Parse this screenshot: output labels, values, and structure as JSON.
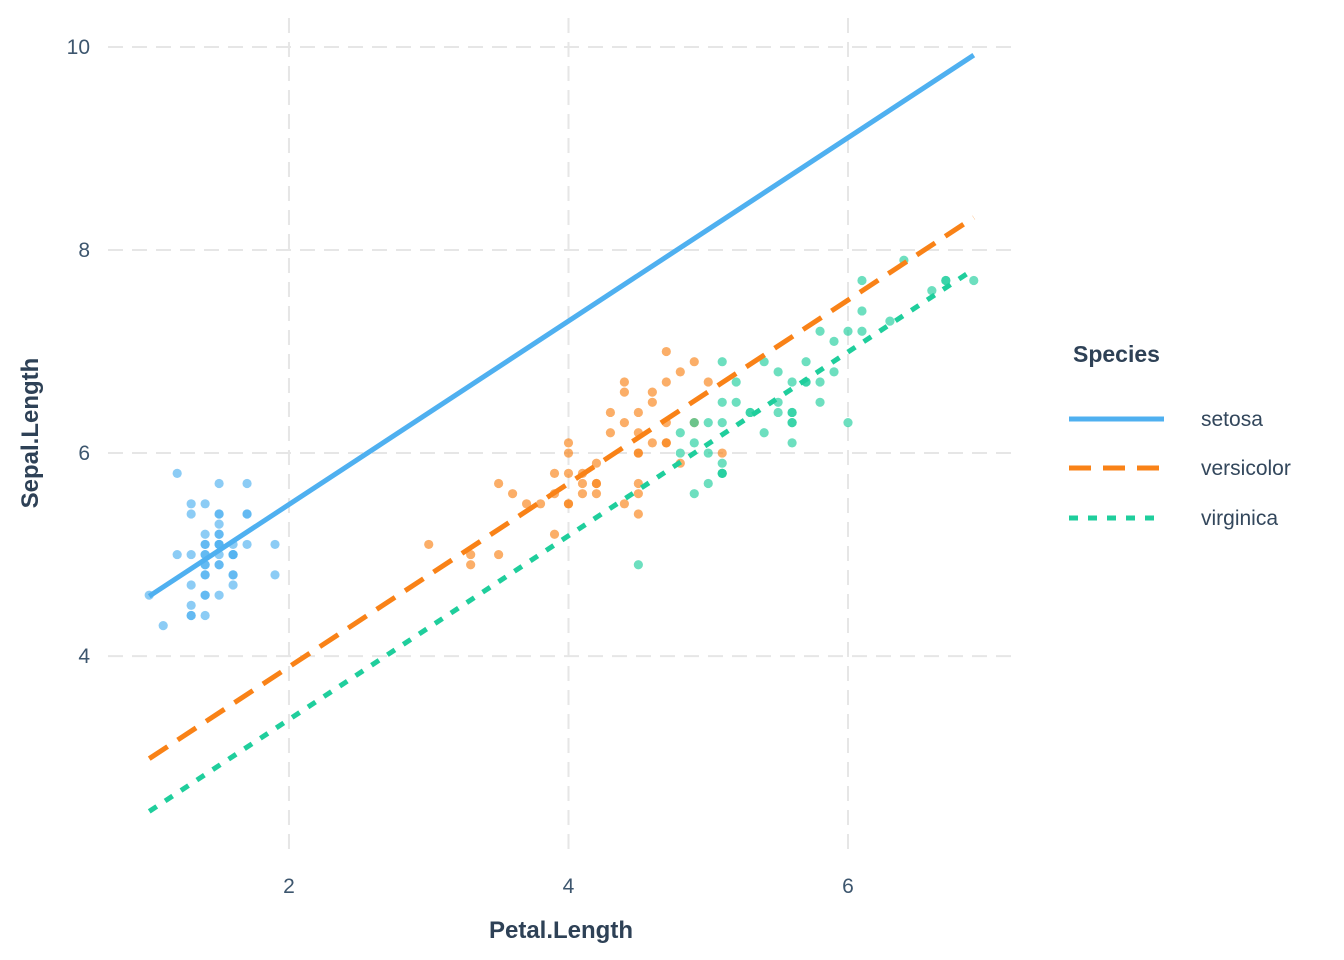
{
  "chart_data": {
    "type": "scatter",
    "title": "",
    "xlabel": "Petal.Length",
    "ylabel": "Sepal.Length",
    "x_ticks": [
      2,
      4,
      6
    ],
    "y_ticks": [
      4,
      6,
      8,
      10
    ],
    "x_range_shown": [
      0.7,
      7.2
    ],
    "y_range_shown": [
      2.06,
      10.29
    ],
    "grid": "major-dashed",
    "gridline_color": "#e6e6e6",
    "point_opacity": 0.65,
    "legend": {
      "title": "Species",
      "position": "right"
    },
    "series": [
      {
        "name": "setosa",
        "color": "#4fb0f0",
        "linestyle": "solid",
        "regression_line": {
          "x1": 1.0,
          "y1": 4.59,
          "x2": 6.9,
          "y2": 9.92
        },
        "points": [
          [
            1.4,
            5.1
          ],
          [
            1.4,
            4.9
          ],
          [
            1.3,
            4.7
          ],
          [
            1.5,
            4.6
          ],
          [
            1.4,
            5.0
          ],
          [
            1.7,
            5.4
          ],
          [
            1.4,
            4.6
          ],
          [
            1.5,
            5.0
          ],
          [
            1.4,
            4.4
          ],
          [
            1.5,
            4.9
          ],
          [
            1.5,
            5.4
          ],
          [
            1.6,
            4.8
          ],
          [
            1.4,
            4.8
          ],
          [
            1.1,
            4.3
          ],
          [
            1.2,
            5.8
          ],
          [
            1.5,
            5.7
          ],
          [
            1.3,
            5.4
          ],
          [
            1.4,
            5.1
          ],
          [
            1.7,
            5.7
          ],
          [
            1.5,
            5.1
          ],
          [
            1.7,
            5.4
          ],
          [
            1.5,
            5.1
          ],
          [
            1.0,
            4.6
          ],
          [
            1.7,
            5.1
          ],
          [
            1.9,
            4.8
          ],
          [
            1.6,
            5.0
          ],
          [
            1.6,
            5.0
          ],
          [
            1.5,
            5.2
          ],
          [
            1.4,
            5.2
          ],
          [
            1.6,
            4.7
          ],
          [
            1.6,
            4.8
          ],
          [
            1.5,
            5.4
          ],
          [
            1.5,
            5.2
          ],
          [
            1.4,
            5.5
          ],
          [
            1.5,
            4.9
          ],
          [
            1.2,
            5.0
          ],
          [
            1.3,
            5.5
          ],
          [
            1.4,
            4.9
          ],
          [
            1.3,
            4.4
          ],
          [
            1.5,
            5.1
          ],
          [
            1.3,
            5.0
          ],
          [
            1.3,
            4.5
          ],
          [
            1.3,
            4.4
          ],
          [
            1.6,
            5.0
          ],
          [
            1.9,
            5.1
          ],
          [
            1.4,
            4.8
          ],
          [
            1.6,
            5.1
          ],
          [
            1.4,
            4.6
          ],
          [
            1.5,
            5.3
          ],
          [
            1.4,
            5.0
          ]
        ]
      },
      {
        "name": "versicolor",
        "color": "#f98217",
        "linestyle": "dashed",
        "regression_line": {
          "x1": 1.0,
          "y1": 2.99,
          "x2": 6.9,
          "y2": 8.32
        },
        "points": [
          [
            4.7,
            7.0
          ],
          [
            4.5,
            6.4
          ],
          [
            4.9,
            6.9
          ],
          [
            4.0,
            5.5
          ],
          [
            4.6,
            6.5
          ],
          [
            4.5,
            5.7
          ],
          [
            4.7,
            6.3
          ],
          [
            3.3,
            4.9
          ],
          [
            4.6,
            6.6
          ],
          [
            3.9,
            5.2
          ],
          [
            3.5,
            5.0
          ],
          [
            4.2,
            5.9
          ],
          [
            4.0,
            6.0
          ],
          [
            4.7,
            6.1
          ],
          [
            3.6,
            5.6
          ],
          [
            4.4,
            6.7
          ],
          [
            4.5,
            5.6
          ],
          [
            4.1,
            5.8
          ],
          [
            4.5,
            6.2
          ],
          [
            3.9,
            5.6
          ],
          [
            4.8,
            5.9
          ],
          [
            4.0,
            6.1
          ],
          [
            4.9,
            6.3
          ],
          [
            4.7,
            6.1
          ],
          [
            4.3,
            6.4
          ],
          [
            4.4,
            6.6
          ],
          [
            4.8,
            6.8
          ],
          [
            5.0,
            6.7
          ],
          [
            4.5,
            6.0
          ],
          [
            3.5,
            5.7
          ],
          [
            3.8,
            5.5
          ],
          [
            3.7,
            5.5
          ],
          [
            3.9,
            5.8
          ],
          [
            5.1,
            6.0
          ],
          [
            4.5,
            5.4
          ],
          [
            4.5,
            6.0
          ],
          [
            4.7,
            6.7
          ],
          [
            4.4,
            6.3
          ],
          [
            4.1,
            5.6
          ],
          [
            4.0,
            5.5
          ],
          [
            4.4,
            5.5
          ],
          [
            4.6,
            6.1
          ],
          [
            4.0,
            5.8
          ],
          [
            3.3,
            5.0
          ],
          [
            4.2,
            5.6
          ],
          [
            4.2,
            5.7
          ],
          [
            4.2,
            5.7
          ],
          [
            4.3,
            6.2
          ],
          [
            3.0,
            5.1
          ],
          [
            4.1,
            5.7
          ]
        ]
      },
      {
        "name": "virginica",
        "color": "#1fce9c",
        "linestyle": "dotted",
        "regression_line": {
          "x1": 1.0,
          "y1": 2.47,
          "x2": 6.9,
          "y2": 7.81
        },
        "points": [
          [
            6.0,
            6.3
          ],
          [
            5.1,
            5.8
          ],
          [
            5.9,
            7.1
          ],
          [
            5.6,
            6.3
          ],
          [
            5.8,
            6.5
          ],
          [
            6.6,
            7.6
          ],
          [
            4.5,
            4.9
          ],
          [
            6.3,
            7.3
          ],
          [
            5.8,
            6.7
          ],
          [
            6.1,
            7.2
          ],
          [
            5.1,
            6.5
          ],
          [
            5.3,
            6.4
          ],
          [
            5.5,
            6.8
          ],
          [
            5.0,
            5.7
          ],
          [
            5.1,
            5.8
          ],
          [
            5.3,
            6.4
          ],
          [
            5.5,
            6.5
          ],
          [
            6.7,
            7.7
          ],
          [
            6.9,
            7.7
          ],
          [
            5.0,
            6.0
          ],
          [
            5.7,
            6.9
          ],
          [
            4.9,
            5.6
          ],
          [
            6.7,
            7.7
          ],
          [
            4.9,
            6.3
          ],
          [
            5.7,
            6.7
          ],
          [
            6.0,
            7.2
          ],
          [
            4.8,
            6.2
          ],
          [
            4.9,
            6.1
          ],
          [
            5.6,
            6.4
          ],
          [
            5.8,
            7.2
          ],
          [
            6.1,
            7.4
          ],
          [
            6.4,
            7.9
          ],
          [
            5.6,
            6.4
          ],
          [
            5.1,
            6.3
          ],
          [
            5.6,
            6.1
          ],
          [
            6.1,
            7.7
          ],
          [
            5.6,
            6.3
          ],
          [
            5.5,
            6.4
          ],
          [
            4.8,
            6.0
          ],
          [
            5.4,
            6.9
          ],
          [
            5.6,
            6.7
          ],
          [
            5.1,
            6.9
          ],
          [
            5.1,
            5.8
          ],
          [
            5.9,
            6.8
          ],
          [
            5.7,
            6.7
          ],
          [
            5.2,
            6.7
          ],
          [
            5.0,
            6.3
          ],
          [
            5.2,
            6.5
          ],
          [
            5.4,
            6.2
          ],
          [
            5.1,
            5.9
          ]
        ]
      }
    ]
  }
}
